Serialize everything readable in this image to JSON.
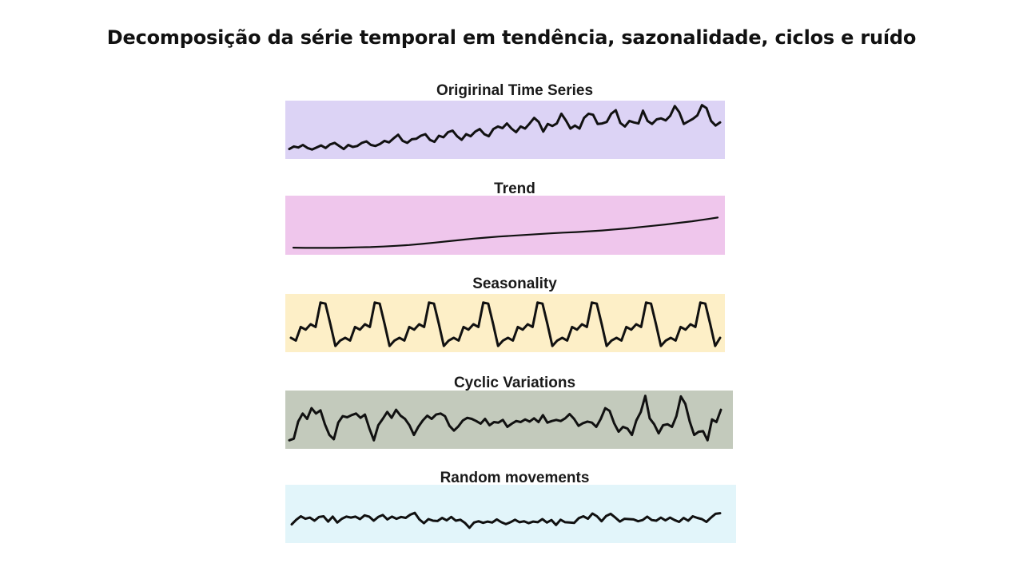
{
  "page": {
    "title": "Decomposição da série temporal em tendência, sazonalidade, ciclos e ruído"
  },
  "chart_data": [
    {
      "type": "line",
      "title": "Origirinal Time Series",
      "background": "#dcd3f5",
      "ylim": [
        0,
        10
      ],
      "y": [
        1.0,
        1.5,
        1.3,
        1.8,
        1.2,
        0.9,
        1.3,
        1.7,
        1.2,
        1.9,
        2.2,
        1.6,
        1.0,
        1.8,
        1.4,
        1.6,
        2.2,
        2.5,
        1.8,
        1.6,
        2.0,
        2.6,
        2.3,
        3.1,
        3.8,
        2.6,
        2.2,
        2.9,
        3.0,
        3.6,
        3.9,
        2.8,
        2.4,
        3.6,
        3.3,
        4.3,
        4.6,
        3.5,
        2.8,
        3.9,
        3.5,
        4.4,
        4.9,
        3.9,
        3.5,
        4.9,
        5.4,
        5.1,
        6.0,
        5.0,
        4.3,
        5.4,
        5.0,
        6.0,
        7.1,
        6.3,
        4.4,
        5.9,
        5.5,
        6.0,
        7.9,
        6.6,
        5.0,
        5.6,
        5.0,
        7.1,
        7.9,
        7.7,
        5.9,
        6.0,
        6.3,
        7.9,
        8.6,
        6.1,
        5.4,
        6.5,
        6.2,
        6.0,
        8.5,
        6.5,
        5.9,
        6.8,
        7.0,
        6.6,
        7.5,
        9.4,
        8.2,
        5.9,
        6.4,
        6.9,
        7.6,
        9.6,
        9.0,
        6.5,
        5.6,
        6.2
      ]
    },
    {
      "type": "line",
      "title": "Trend",
      "background": "#efc6ec",
      "ylim": [
        0,
        10
      ],
      "y": [
        0.9,
        0.85,
        0.85,
        0.85,
        0.9,
        0.95,
        1.0,
        1.1,
        1.25,
        1.4,
        1.6,
        1.85,
        2.1,
        2.35,
        2.6,
        2.8,
        3.0,
        3.15,
        3.3,
        3.45,
        3.6,
        3.75,
        3.85,
        4.0,
        4.15,
        4.35,
        4.55,
        4.8,
        5.05,
        5.3,
        5.6,
        5.9,
        6.25,
        6.6
      ]
    },
    {
      "type": "line",
      "title": "Seasonality",
      "background": "#fdefc7",
      "ylim": [
        0,
        10
      ],
      "y": [
        2.5,
        2.0,
        4.5,
        4.0,
        5.0,
        4.5,
        9.0,
        8.8,
        5.0,
        1.0,
        2.0,
        2.5,
        2.0,
        4.5,
        4.0,
        5.0,
        4.5,
        9.0,
        8.8,
        5.0,
        1.0,
        2.0,
        2.5,
        2.0,
        4.5,
        4.0,
        5.0,
        4.5,
        9.0,
        8.8,
        5.0,
        1.0,
        2.0,
        2.5,
        2.0,
        4.5,
        4.0,
        5.0,
        4.5,
        9.0,
        8.8,
        5.0,
        1.0,
        2.0,
        2.5,
        2.0,
        4.5,
        4.0,
        5.0,
        4.5,
        9.0,
        8.8,
        5.0,
        1.0,
        2.0,
        2.5,
        2.0,
        4.5,
        4.0,
        5.0,
        4.5,
        9.0,
        8.8,
        5.0,
        1.0,
        2.0,
        2.5,
        2.0,
        4.5,
        4.0,
        5.0,
        4.5,
        9.0,
        8.8,
        5.0,
        1.0,
        2.0,
        2.5,
        2.0,
        4.5,
        4.0,
        5.0,
        4.5,
        9.0,
        8.8,
        5.0,
        1.0,
        2.5
      ]
    },
    {
      "type": "line",
      "title": "Cyclic Variations",
      "background": "#c3cabc",
      "ylim": [
        0,
        10
      ],
      "y": [
        1.0,
        1.3,
        4.5,
        6.0,
        5.0,
        7.0,
        6.0,
        6.6,
        4.0,
        2.0,
        1.2,
        4.3,
        5.5,
        5.3,
        5.7,
        6.0,
        5.2,
        5.8,
        3.2,
        1.0,
        3.8,
        5.0,
        6.3,
        5.2,
        6.7,
        5.6,
        5.0,
        3.8,
        2.0,
        3.5,
        4.7,
        5.6,
        5.0,
        5.8,
        6.0,
        5.5,
        3.7,
        2.8,
        3.6,
        4.7,
        5.2,
        5.0,
        4.6,
        4.1,
        5.0,
        3.8,
        4.4,
        4.3,
        4.8,
        3.5,
        4.1,
        4.6,
        4.4,
        4.9,
        4.5,
        5.1,
        4.4,
        5.7,
        4.3,
        4.6,
        4.8,
        4.6,
        5.1,
        5.9,
        5.0,
        3.7,
        4.2,
        4.5,
        4.3,
        3.5,
        5.0,
        7.0,
        6.5,
        4.2,
        2.6,
        3.5,
        3.2,
        2.0,
        4.7,
        6.3,
        9.3,
        5.1,
        4.0,
        2.3,
        3.8,
        4.0,
        3.5,
        5.5,
        9.2,
        7.8,
        4.5,
        2.0,
        2.6,
        2.7,
        1.0,
        4.9,
        4.4,
        6.7
      ]
    },
    {
      "type": "line",
      "title": "Random movements",
      "background": "#e2f5fa",
      "ylim": [
        0,
        10
      ],
      "y": [
        2.4,
        3.9,
        5.0,
        4.2,
        4.6,
        3.6,
        4.8,
        5.0,
        3.3,
        4.9,
        3.0,
        4.2,
        4.9,
        4.6,
        4.9,
        4.1,
        5.3,
        4.9,
        3.6,
        4.8,
        5.4,
        4.0,
        4.9,
        4.2,
        4.8,
        4.5,
        5.5,
        6.1,
        4.0,
        2.8,
        4.1,
        3.6,
        3.5,
        4.5,
        3.7,
        4.8,
        3.6,
        3.9,
        2.9,
        1.3,
        3.0,
        3.4,
        2.9,
        3.3,
        3.0,
        4.0,
        3.1,
        2.5,
        3.1,
        3.9,
        3.1,
        3.4,
        2.8,
        3.3,
        3.1,
        4.1,
        3.0,
        3.8,
        2.2,
        3.9,
        3.1,
        3.0,
        2.9,
        4.4,
        5.0,
        4.2,
        5.9,
        5.0,
        3.4,
        5.1,
        5.8,
        4.6,
        3.3,
        4.2,
        4.1,
        4.0,
        3.4,
        3.8,
        4.9,
        3.8,
        3.6,
        4.6,
        3.7,
        4.6,
        3.8,
        3.2,
        4.5,
        3.6,
        5.0,
        4.5,
        4.1,
        3.2,
        4.6,
        5.8,
        6.0
      ]
    }
  ]
}
